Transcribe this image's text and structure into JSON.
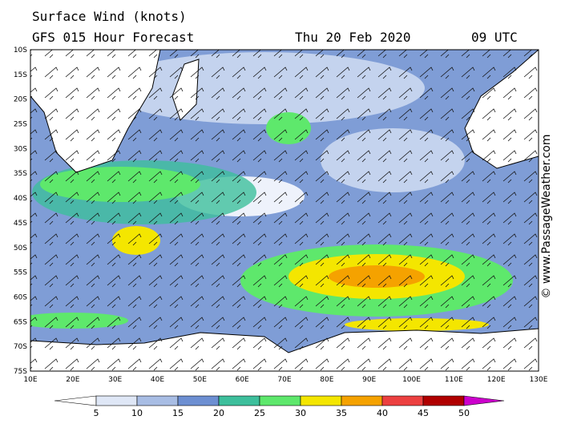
{
  "header": {
    "title": "Surface Wind (knots)",
    "model": "GFS 015 Hour Forecast",
    "date": "Thu 20 Feb 2020",
    "time": "09 UTC"
  },
  "lat_labels": [
    "10S",
    "15S",
    "20S",
    "25S",
    "30S",
    "35S",
    "40S",
    "45S",
    "50S",
    "55S",
    "60S",
    "65S",
    "70S",
    "75S"
  ],
  "lon_labels": [
    "10E",
    "20E",
    "30E",
    "40E",
    "50E",
    "60E",
    "70E",
    "80E",
    "90E",
    "100E",
    "110E",
    "120E",
    "130E"
  ],
  "colorbar": {
    "labels": [
      "5",
      "10",
      "15",
      "20",
      "25",
      "30",
      "35",
      "40",
      "45",
      "50"
    ],
    "colors": [
      "#ffffff",
      "#dfe7f6",
      "#a8bde4",
      "#6d8fd2",
      "#3dbf9c",
      "#5ee86c",
      "#f4e600",
      "#f5a200",
      "#ec4040",
      "#b00000",
      "#cc00cc"
    ]
  },
  "copyright": "© www.PassageWeather.com"
}
